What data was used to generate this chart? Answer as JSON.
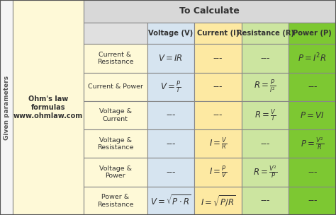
{
  "title_cell": "Ohm's law\nformulas\nwww.ohmlaw.com",
  "to_calculate": "To Calculate",
  "col_headers": [
    "Voltage (V)",
    "Current (I)",
    "Resistance (R)",
    "Power (P)"
  ],
  "row_headers": [
    "Current &\nResistance",
    "Current & Power",
    "Voltage &\nCurrent",
    "Voltage &\nResistance",
    "Voltage &\nPower",
    "Power &\nResistance"
  ],
  "side_label": "Given parameters",
  "col_header_colors": [
    "#d6e4f0",
    "#fde9a2",
    "#cce5a0",
    "#7dc832"
  ],
  "row_header_color": "#fef9d7",
  "title_cell_color": "#fef9d7",
  "to_calculate_color": "#d8d8d8",
  "border_color": "#888888",
  "cells": [
    [
      "$V = IR$",
      "---",
      "---",
      "$P = I^2R$"
    ],
    [
      "$V = \\frac{P}{I}$",
      "---",
      "$R = \\frac{P}{I^2}$",
      "---"
    ],
    [
      "---",
      "---",
      "$R = \\frac{V}{I}$",
      "$P = VI$"
    ],
    [
      "---",
      "$I = \\frac{V}{R}$",
      "---",
      "$P = \\frac{V^2}{R}$"
    ],
    [
      "---",
      "$I = \\frac{P}{V}$",
      "$R = \\frac{V^2}{P}$",
      "---"
    ],
    [
      "$V = \\sqrt{P \\cdot R}$",
      "$I = \\sqrt{P/R}$",
      "---",
      "---"
    ]
  ],
  "cell_colors": [
    [
      "#d6e4f0",
      "#fde9a2",
      "#cce5a0",
      "#7dc832"
    ],
    [
      "#d6e4f0",
      "#fde9a2",
      "#cce5a0",
      "#7dc832"
    ],
    [
      "#d6e4f0",
      "#fde9a2",
      "#cce5a0",
      "#7dc832"
    ],
    [
      "#d6e4f0",
      "#fde9a2",
      "#cce5a0",
      "#7dc832"
    ],
    [
      "#d6e4f0",
      "#fde9a2",
      "#cce5a0",
      "#7dc832"
    ],
    [
      "#d6e4f0",
      "#fde9a2",
      "#cce5a0",
      "#7dc832"
    ]
  ],
  "side_label_color": "#555555",
  "figw": 4.74,
  "figh": 3.04,
  "dpi": 100
}
